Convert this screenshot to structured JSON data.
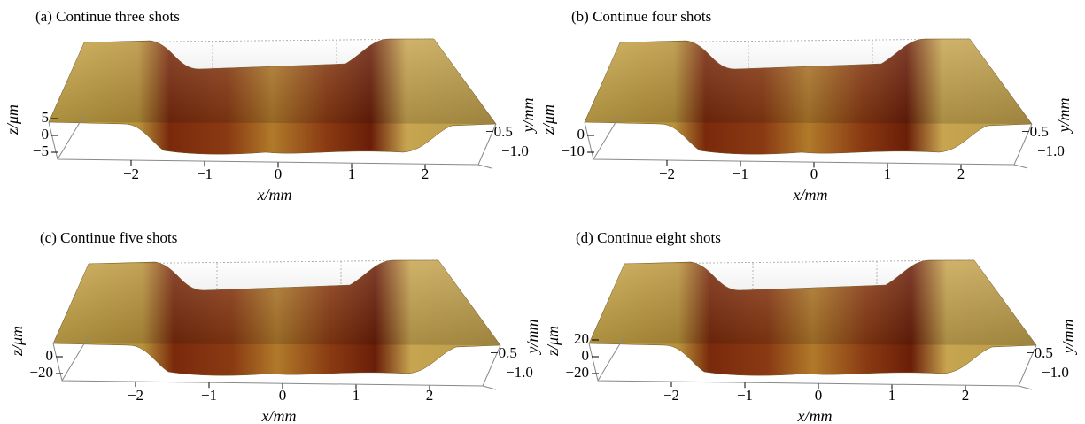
{
  "panels": [
    {
      "title": "(a) Continue three shots",
      "x_label": "x/mm",
      "y_label": "y/mm",
      "z_label": "z/μm",
      "x_ticks": [
        "−2",
        "−1",
        "0",
        "1",
        "2"
      ],
      "y_ticks": [
        "−0.5",
        "−1.0"
      ],
      "z_ticks": [
        "5",
        "0",
        "−5"
      ]
    },
    {
      "title": "(b) Continue four shots",
      "x_label": "x/mm",
      "y_label": "y/mm",
      "z_label": "z/μm",
      "x_ticks": [
        "−2",
        "−1",
        "0",
        "1",
        "2"
      ],
      "y_ticks": [
        "−0.5",
        "−1.0"
      ],
      "z_ticks": [
        "0",
        "−10"
      ]
    },
    {
      "title": "(c) Continue five shots",
      "x_label": "x/mm",
      "y_label": "y/mm",
      "z_label": "z/μm",
      "x_ticks": [
        "−2",
        "−1",
        "0",
        "1",
        "2"
      ],
      "y_ticks": [
        "−0.5",
        "−1.0"
      ],
      "z_ticks": [
        "0",
        "−20"
      ]
    },
    {
      "title": "(d) Continue eight shots",
      "x_label": "x/mm",
      "y_label": "y/mm",
      "z_label": "z/μm",
      "x_ticks": [
        "−2",
        "−1",
        "0",
        "1",
        "2"
      ],
      "y_ticks": [
        "−0.5",
        "−1.0"
      ],
      "z_ticks": [
        "20",
        "0",
        "−20"
      ]
    }
  ]
}
